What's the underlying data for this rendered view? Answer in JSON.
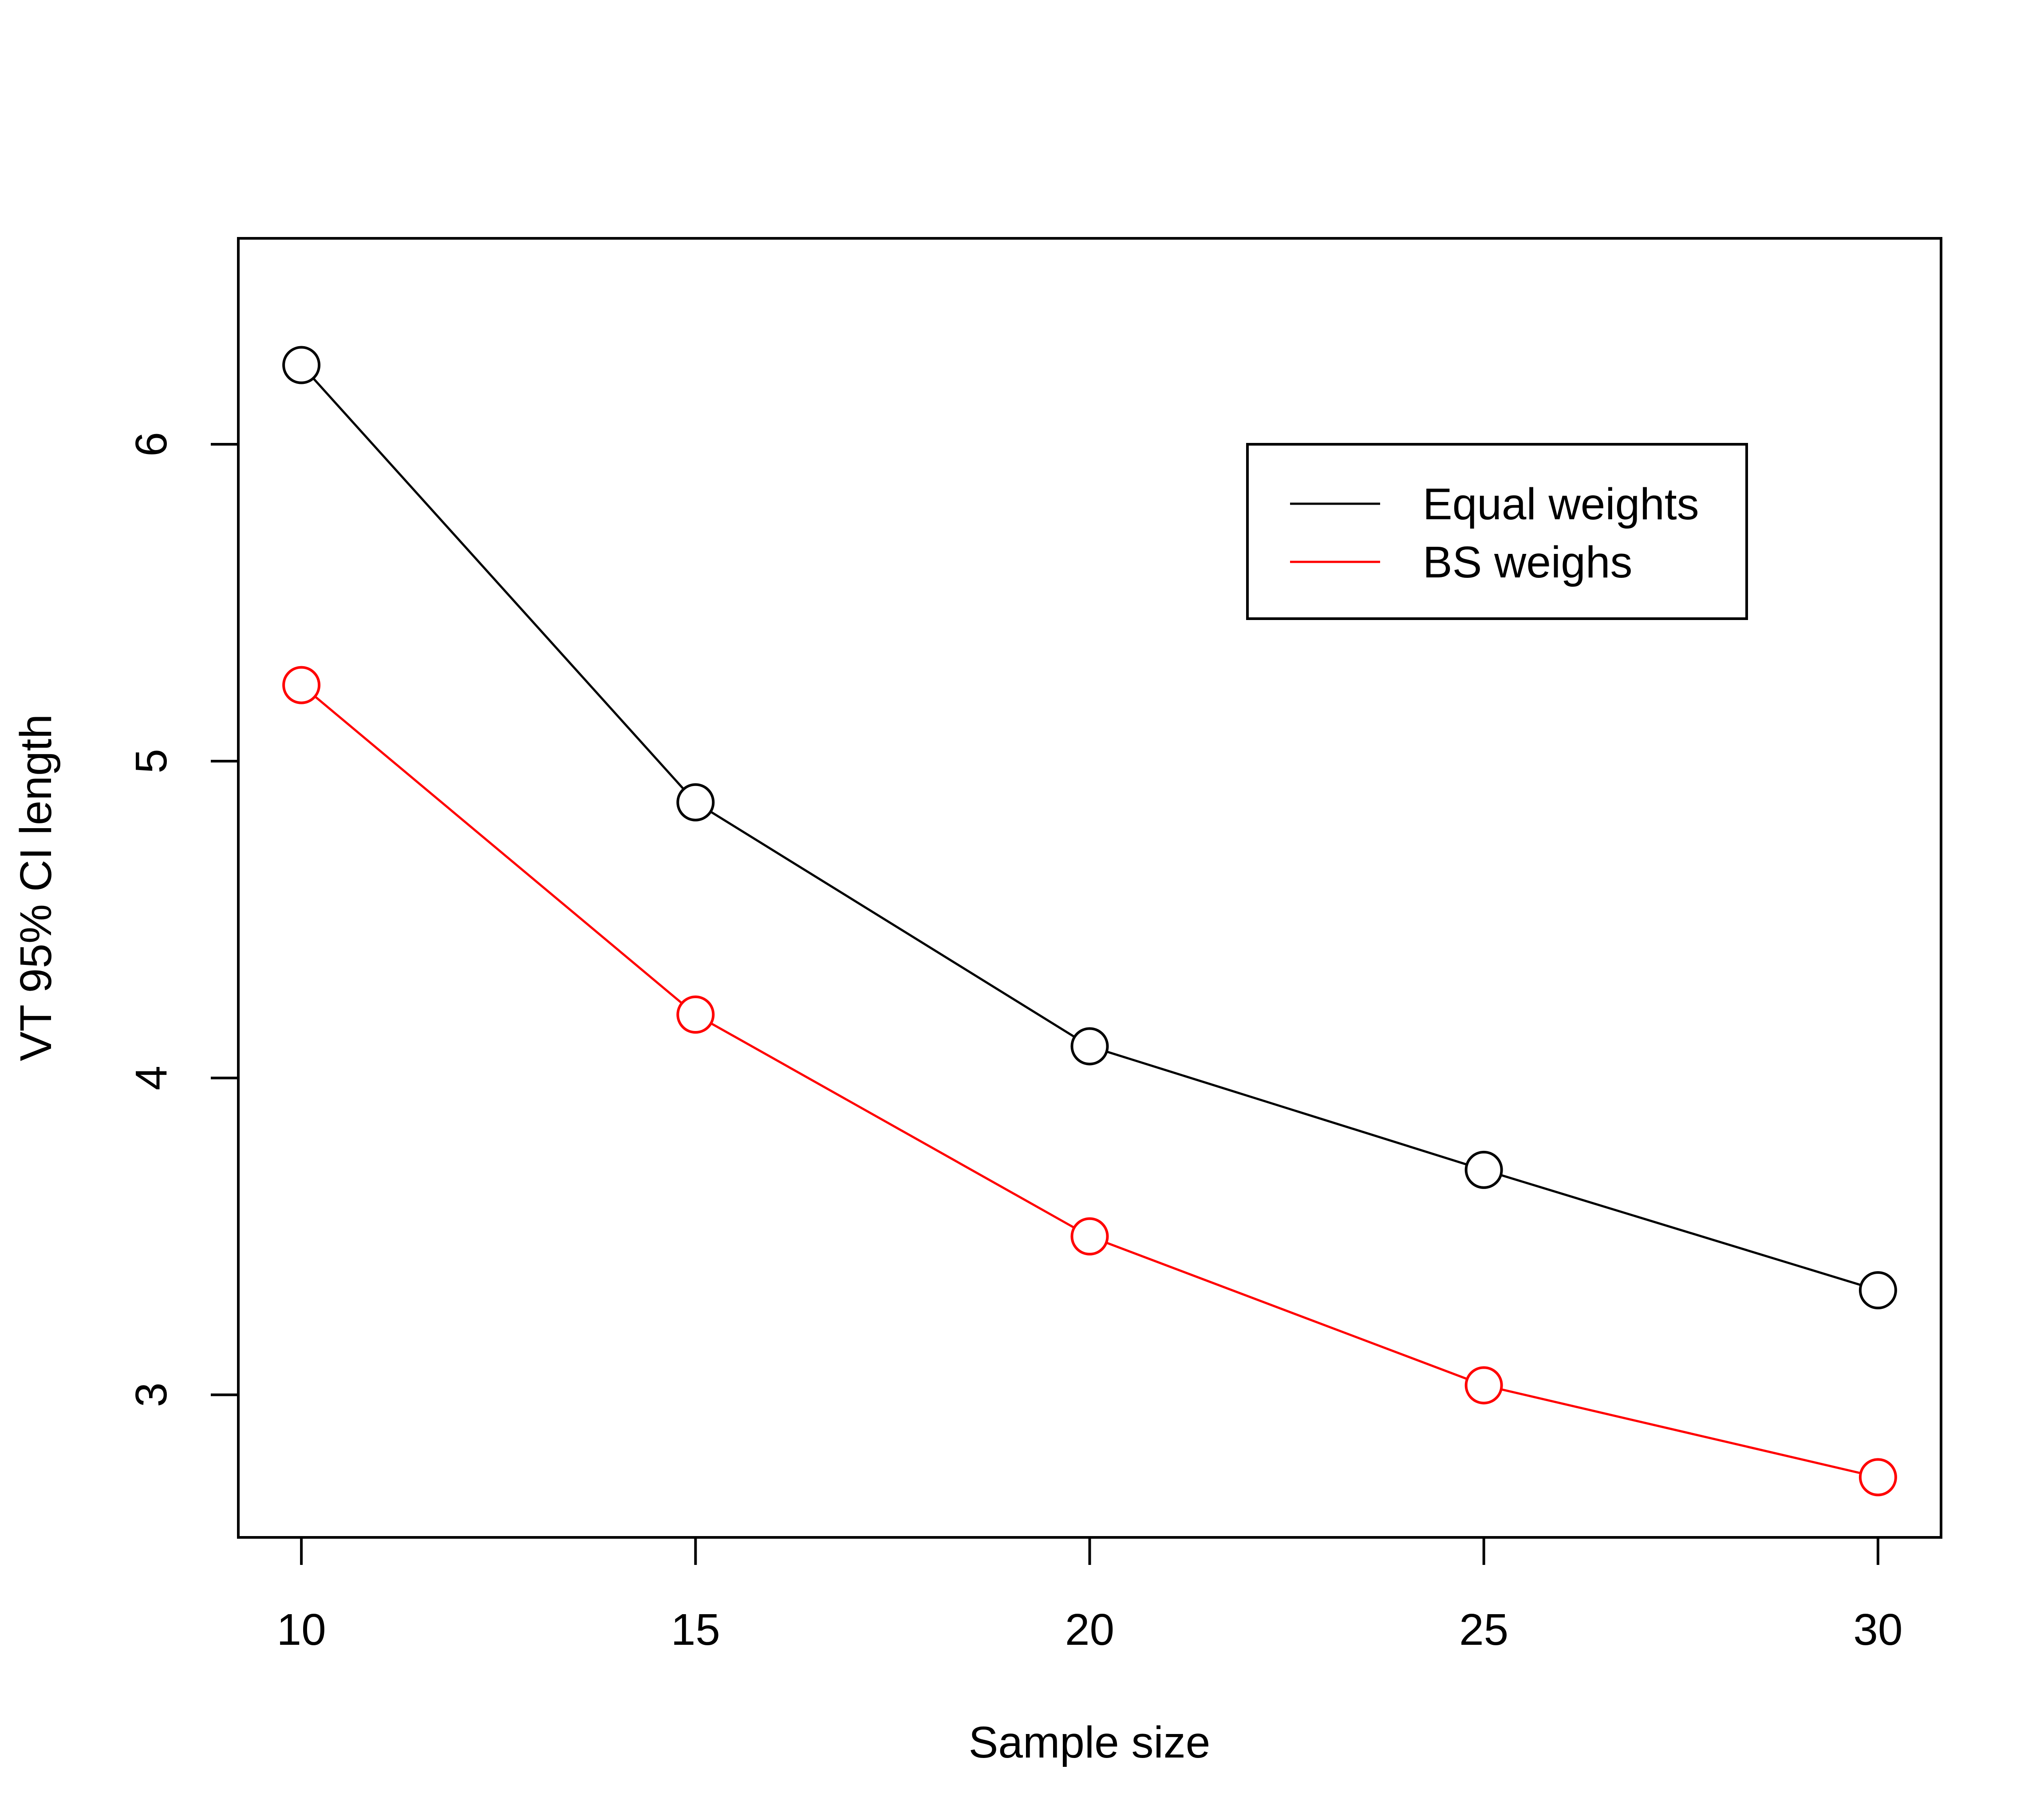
{
  "chart_data": {
    "type": "line",
    "title": "",
    "xlabel": "Sample size",
    "ylabel": "VT 95% CI length",
    "x": [
      10,
      15,
      20,
      25,
      30
    ],
    "x_ticks": [
      "10",
      "15",
      "20",
      "25",
      "30"
    ],
    "y_ticks": [
      "3",
      "4",
      "5",
      "6"
    ],
    "xlim": [
      9.2,
      30.8
    ],
    "ylim": [
      2.55,
      6.65
    ],
    "grid": false,
    "legend_position": "top-right",
    "marker": "open-circle",
    "series": [
      {
        "name": "Equal weights",
        "color": "#000000",
        "values": [
          6.25,
          4.87,
          4.1,
          3.71,
          3.33
        ]
      },
      {
        "name": "BS weighs",
        "color": "#ff0000",
        "values": [
          5.24,
          4.2,
          3.5,
          3.03,
          2.74
        ]
      }
    ]
  }
}
